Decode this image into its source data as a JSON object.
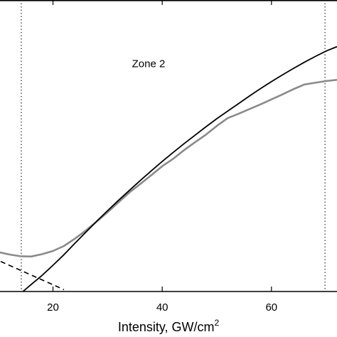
{
  "chart_data": {
    "type": "line",
    "title": "",
    "xlabel": "Intensity, GW/cm",
    "xlabel_superscript": "2",
    "ylabel": "",
    "xlim": [
      9,
      72
    ],
    "ylim": [
      0,
      1
    ],
    "xticks": [
      20,
      40,
      60
    ],
    "xtick_labels": [
      "20",
      "40",
      "60"
    ],
    "grid": false,
    "legend": "none",
    "vertical_lines": [
      {
        "x": 14.2,
        "style": "dotted"
      },
      {
        "x": 69.8,
        "style": "dotted"
      }
    ],
    "annotations": [
      {
        "text": "Zone 2",
        "x": 37.5,
        "y": 0.77
      }
    ],
    "colors": {
      "measured": "#8a8a8a",
      "fit": "#000000",
      "asymptote": "#000000"
    },
    "series": [
      {
        "style": "noisy-gray",
        "x": [
          9,
          10,
          12,
          14,
          16,
          18,
          20,
          22,
          24,
          26,
          28,
          30,
          32,
          34,
          36,
          38,
          40,
          42,
          44,
          46,
          48,
          50,
          52,
          54,
          56,
          58,
          60,
          62,
          64,
          66,
          68,
          70,
          72
        ],
        "y": [
          0.137,
          0.135,
          0.127,
          0.121,
          0.12,
          0.128,
          0.139,
          0.156,
          0.181,
          0.209,
          0.24,
          0.272,
          0.306,
          0.34,
          0.369,
          0.399,
          0.43,
          0.455,
          0.485,
          0.512,
          0.538,
          0.568,
          0.595,
          0.61,
          0.626,
          0.642,
          0.659,
          0.676,
          0.694,
          0.71,
          0.716,
          0.722,
          0.726
        ]
      },
      {
        "style": "solid-black",
        "x": [
          14.5,
          16,
          18,
          20,
          22,
          24,
          26,
          28,
          30,
          32,
          34,
          36,
          38,
          40,
          42,
          44,
          46,
          48,
          50,
          52,
          54,
          56,
          58,
          60,
          62,
          64,
          66,
          68,
          70,
          72
        ],
        "y": [
          0.0,
          0.024,
          0.055,
          0.09,
          0.126,
          0.165,
          0.203,
          0.241,
          0.277,
          0.313,
          0.347,
          0.381,
          0.414,
          0.446,
          0.477,
          0.507,
          0.536,
          0.565,
          0.593,
          0.619,
          0.645,
          0.671,
          0.696,
          0.72,
          0.743,
          0.765,
          0.786,
          0.806,
          0.825,
          0.84
        ]
      },
      {
        "style": "dashed-black",
        "x": [
          9,
          12,
          15,
          18,
          21,
          22
        ],
        "y": [
          0.115,
          0.09,
          0.065,
          0.04,
          0.015,
          0.006
        ]
      }
    ]
  }
}
